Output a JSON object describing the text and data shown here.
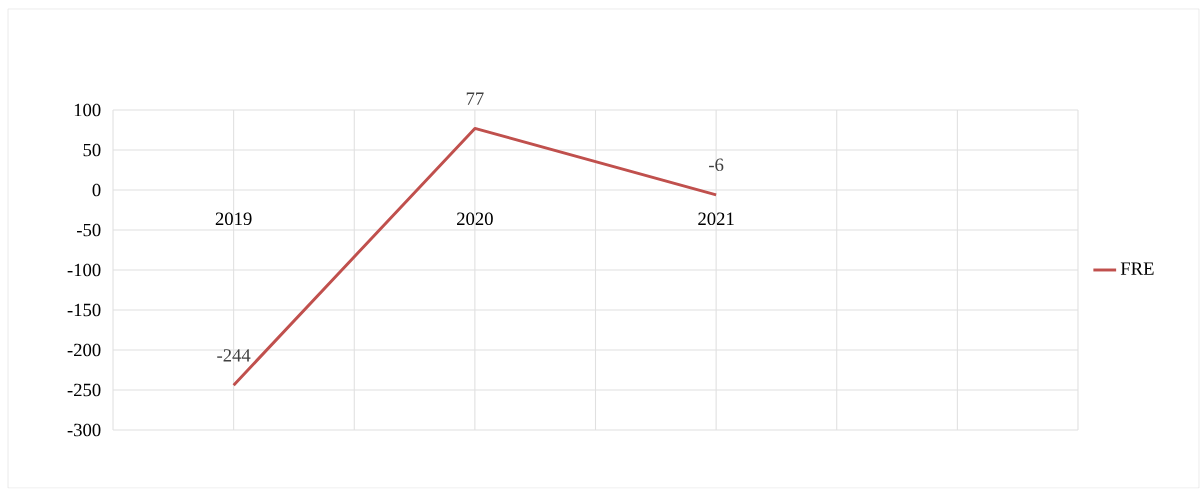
{
  "chart_data": {
    "type": "line",
    "categories": [
      "2019",
      "2020",
      "2021",
      null
    ],
    "series": [
      {
        "name": "FRE",
        "color": "#c0504d",
        "values": [
          -244,
          77,
          -6,
          null
        ]
      }
    ],
    "ylim": [
      -300,
      100
    ],
    "yticks": [
      -300,
      -250,
      -200,
      -150,
      -100,
      -50,
      0,
      50,
      100
    ],
    "grid": true,
    "legend": "right",
    "data_labels": true,
    "marker": "none",
    "line_style": "solid"
  }
}
